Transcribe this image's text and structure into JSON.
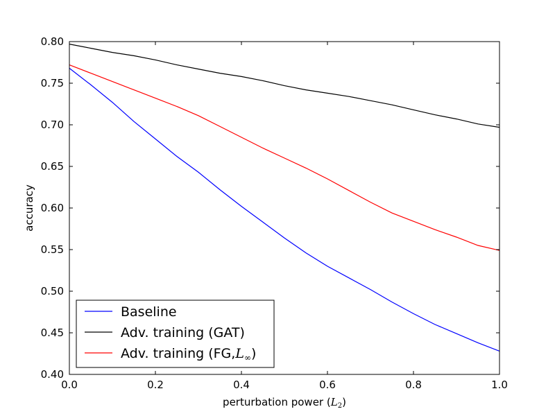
{
  "chart_data": {
    "type": "line",
    "title": "",
    "xlabel_text": "perturbation power",
    "xlabel_math_base": "L",
    "xlabel_math_sub": "2",
    "ylabel": "accuracy",
    "xlim": [
      0.0,
      1.0
    ],
    "ylim": [
      0.4,
      0.8
    ],
    "xticks": [
      0.0,
      0.2,
      0.4,
      0.6,
      0.8,
      1.0
    ],
    "xtick_labels": [
      "0.0",
      "0.2",
      "0.4",
      "0.6",
      "0.8",
      "1.0"
    ],
    "yticks": [
      0.4,
      0.45,
      0.5,
      0.55,
      0.6,
      0.65,
      0.7,
      0.75,
      0.8
    ],
    "ytick_labels": [
      "0.40",
      "0.45",
      "0.50",
      "0.55",
      "0.60",
      "0.65",
      "0.70",
      "0.75",
      "0.80"
    ],
    "grid": false,
    "legend_position": "lower-left",
    "x": [
      0.0,
      0.05,
      0.1,
      0.15,
      0.2,
      0.25,
      0.3,
      0.35,
      0.4,
      0.45,
      0.5,
      0.55,
      0.6,
      0.65,
      0.7,
      0.75,
      0.8,
      0.85,
      0.9,
      0.95,
      1.0
    ],
    "series": [
      {
        "name": "Baseline",
        "color": "#0000ff",
        "values": [
          0.768,
          0.748,
          0.727,
          0.704,
          0.683,
          0.662,
          0.643,
          0.622,
          0.602,
          0.583,
          0.564,
          0.546,
          0.53,
          0.516,
          0.502,
          0.487,
          0.473,
          0.46,
          0.449,
          0.438,
          0.428
        ]
      },
      {
        "name": "Adv. training (GAT)",
        "color": "#000000",
        "values": [
          0.797,
          0.792,
          0.787,
          0.783,
          0.778,
          0.772,
          0.767,
          0.762,
          0.758,
          0.753,
          0.747,
          0.742,
          0.738,
          0.734,
          0.729,
          0.724,
          0.718,
          0.712,
          0.707,
          0.701,
          0.697
        ]
      },
      {
        "name": "Adv. training (FG,",
        "name_math_base": "L",
        "name_math_sub": "∞",
        "name_suffix": ")",
        "color": "#ff0000",
        "values": [
          0.772,
          0.762,
          0.752,
          0.742,
          0.732,
          0.722,
          0.711,
          0.698,
          0.685,
          0.672,
          0.66,
          0.648,
          0.635,
          0.621,
          0.607,
          0.594,
          0.584,
          0.574,
          0.565,
          0.555,
          0.549
        ]
      }
    ]
  }
}
